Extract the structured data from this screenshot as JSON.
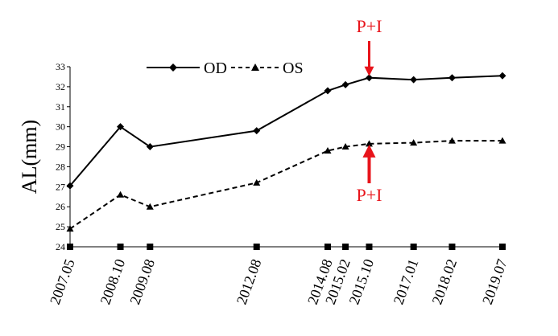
{
  "chart_data": {
    "type": "line",
    "x": [
      "2007.05",
      "2008.10",
      "2009.08",
      "2012.08",
      "2014.08",
      "2015.02",
      "2015.10",
      "2017.01",
      "2018.02",
      "2019.07"
    ],
    "x_numeric": [
      2007.333,
      2008.75,
      2009.583,
      2012.583,
      2014.583,
      2015.083,
      2015.75,
      2017.0,
      2018.083,
      2019.5
    ],
    "series": [
      {
        "name": "OD",
        "values": [
          27.05,
          30.0,
          29.0,
          29.8,
          31.8,
          32.1,
          32.45,
          32.35,
          32.45,
          32.55
        ],
        "style": "solid",
        "marker": "diamond",
        "color": "#000000"
      },
      {
        "name": "OS",
        "values": [
          24.9,
          26.6,
          26.0,
          27.2,
          28.8,
          29.0,
          29.15,
          29.2,
          29.3,
          29.3
        ],
        "style": "dashed",
        "marker": "triangle",
        "color": "#000000"
      }
    ],
    "ylabel": "AL(mm)",
    "xlabel": "",
    "ylim": [
      24,
      33
    ],
    "yticks": [
      24,
      25,
      26,
      27,
      28,
      29,
      30,
      31,
      32,
      33
    ],
    "grid": false,
    "legend": "top-center",
    "annotations": [
      {
        "text": "P+I",
        "x": "2015.10",
        "points_to": "OD",
        "direction": "down",
        "color": "#e8141b"
      },
      {
        "text": "P+I",
        "x": "2015.10",
        "points_to": "OS",
        "direction": "up",
        "color": "#e8141b"
      }
    ]
  }
}
